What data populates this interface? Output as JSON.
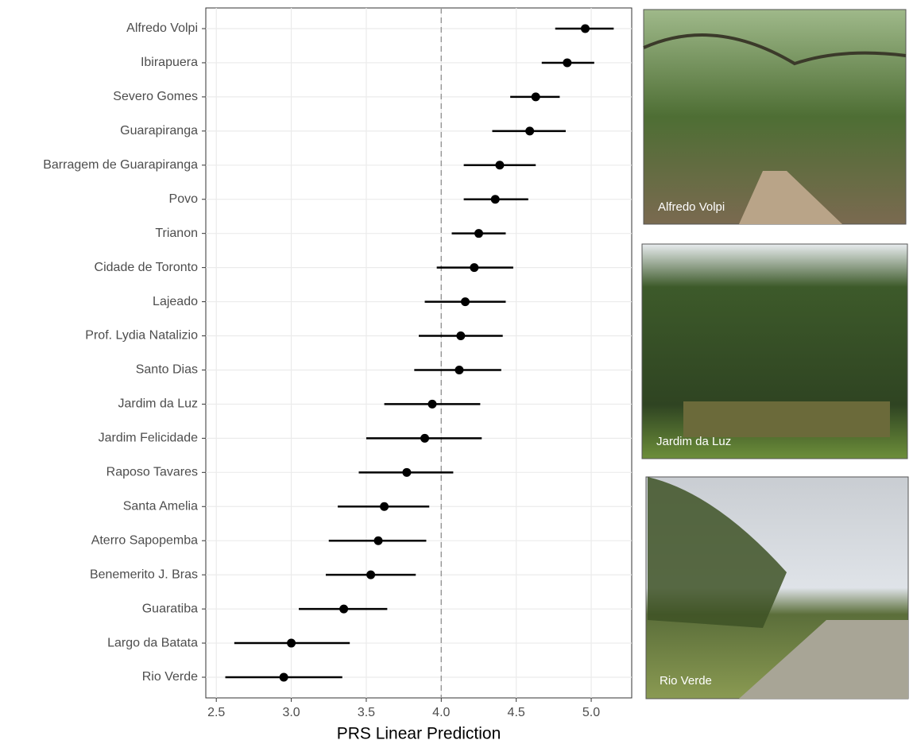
{
  "chart_data": {
    "type": "errorbar",
    "x_label": "PRS Linear Prediction",
    "categories": [
      "Alfredo Volpi",
      "Ibirapuera",
      "Severo Gomes",
      "Guarapiranga",
      "Barragem de Guarapiranga",
      "Povo",
      "Trianon",
      "Cidade de Toronto",
      "Lajeado",
      "Prof. Lydia Natalizio",
      "Santo Dias",
      "Jardim da Luz",
      "Jardim Felicidade",
      "Raposo Tavares",
      "Santa Amelia",
      "Aterro Sapopemba",
      "Benemerito J. Bras",
      "Guaratiba",
      "Largo da Batata",
      "Rio Verde"
    ],
    "values": [
      4.96,
      4.84,
      4.63,
      4.59,
      4.39,
      4.36,
      4.25,
      4.22,
      4.16,
      4.13,
      4.12,
      3.94,
      3.89,
      3.77,
      3.62,
      3.58,
      3.53,
      3.35,
      3.0,
      2.95
    ],
    "lower": [
      4.76,
      4.67,
      4.46,
      4.34,
      4.15,
      4.15,
      4.07,
      3.97,
      3.89,
      3.85,
      3.82,
      3.62,
      3.5,
      3.45,
      3.31,
      3.25,
      3.23,
      3.05,
      2.62,
      2.56
    ],
    "upper": [
      5.15,
      5.02,
      4.79,
      4.83,
      4.63,
      4.58,
      4.43,
      4.48,
      4.43,
      4.41,
      4.4,
      4.26,
      4.27,
      4.08,
      3.92,
      3.9,
      3.83,
      3.64,
      3.39,
      3.34
    ],
    "color": "#000000",
    "xlim": [
      2.43,
      5.27
    ],
    "xticks": [
      2.5,
      {
        "value": 3,
        "label": "3.0"
      },
      3.5,
      {
        "value": 4,
        "label": "4.0"
      },
      4.5,
      {
        "value": 5,
        "label": "5.0"
      }
    ],
    "reference_line": 4,
    "grid": true
  },
  "photos": [
    {
      "caption": "Alfredo Volpi"
    },
    {
      "caption": "Jardim da Luz"
    },
    {
      "caption": "Rio Verde"
    }
  ]
}
